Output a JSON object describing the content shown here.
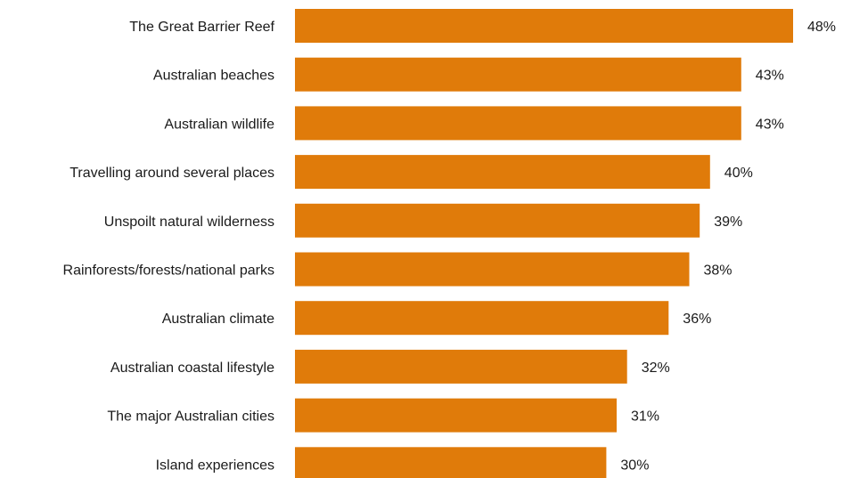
{
  "chart_data": {
    "type": "bar",
    "orientation": "horizontal",
    "title": "",
    "xlabel": "",
    "ylabel": "",
    "categories": [
      "The Great Barrier Reef",
      "Australian beaches",
      "Australian wildlife",
      "Travelling around several places",
      "Unspoilt natural wilderness",
      "Rainforests/forests/national parks",
      "Australian climate",
      "Australian coastal lifestyle",
      "The major Australian cities",
      "Island experiences"
    ],
    "values": [
      48,
      43,
      43,
      40,
      39,
      38,
      36,
      32,
      31,
      30
    ],
    "value_labels": [
      "48%",
      "43%",
      "43%",
      "40%",
      "39%",
      "38%",
      "36%",
      "32%",
      "31%",
      "30%"
    ],
    "xlim": [
      0,
      48
    ],
    "grid": false,
    "legend": "none",
    "bar_color": "#E07B0A"
  }
}
